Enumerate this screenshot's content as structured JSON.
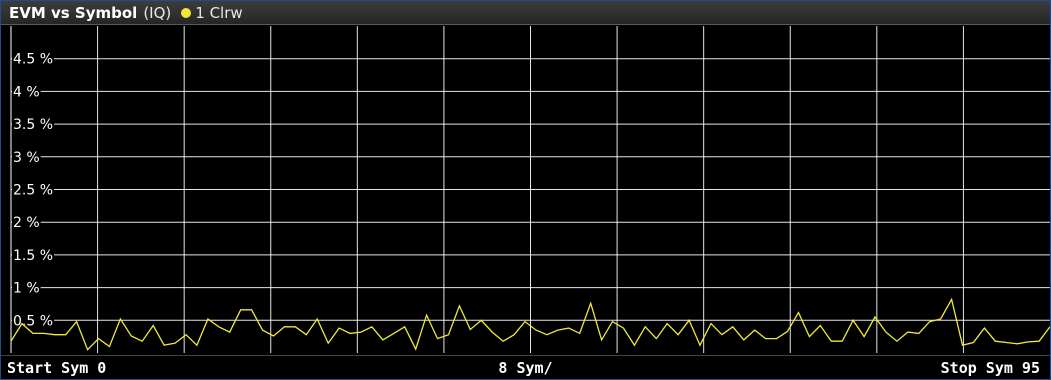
{
  "window": {
    "title": "EVM vs Symbol",
    "subtitle": "(IQ)",
    "trace_label": "1 Clrw",
    "trace_color": "#f2e83a"
  },
  "footer": {
    "start": "Start Sym 0",
    "center": "8 Sym/",
    "stop": "Stop Sym 95"
  },
  "chart_data": {
    "type": "line",
    "title": "EVM vs Symbol",
    "xlabel": "",
    "ylabel": "",
    "xlim": [
      0,
      95
    ],
    "ylim": [
      0,
      5
    ],
    "ytick_values": [
      0.5,
      1,
      1.5,
      2,
      2.5,
      3,
      3.5,
      4,
      4.5
    ],
    "ytick_labels": [
      "0.5 %",
      "1 %",
      "1.5 %",
      "2 %",
      "2.5 %",
      "3 %",
      "3.5 %",
      "4 %",
      "4.5 %"
    ],
    "x_divisions": 12,
    "y_divisions": 10,
    "grid": true,
    "colors": {
      "background": "#000000",
      "grid": "#ffffff",
      "trace": "#f2e83a"
    },
    "series": [
      {
        "values": [
          0.18,
          0.45,
          0.3,
          0.3,
          0.28,
          0.28,
          0.48,
          0.05,
          0.22,
          0.1,
          0.52,
          0.26,
          0.18,
          0.42,
          0.12,
          0.15,
          0.28,
          0.12,
          0.52,
          0.4,
          0.32,
          0.66,
          0.66,
          0.35,
          0.26,
          0.4,
          0.4,
          0.28,
          0.52,
          0.15,
          0.38,
          0.3,
          0.32,
          0.4,
          0.2,
          0.3,
          0.4,
          0.06,
          0.58,
          0.22,
          0.28,
          0.72,
          0.36,
          0.5,
          0.32,
          0.18,
          0.28,
          0.48,
          0.35,
          0.28,
          0.35,
          0.38,
          0.3,
          0.76,
          0.2,
          0.48,
          0.38,
          0.12,
          0.4,
          0.22,
          0.45,
          0.28,
          0.5,
          0.12,
          0.45,
          0.28,
          0.4,
          0.2,
          0.35,
          0.22,
          0.22,
          0.33,
          0.62,
          0.25,
          0.42,
          0.18,
          0.18,
          0.5,
          0.25,
          0.55,
          0.32,
          0.18,
          0.32,
          0.3,
          0.48,
          0.52,
          0.82,
          0.12,
          0.16,
          0.38,
          0.18,
          0.16,
          0.14,
          0.17,
          0.18,
          0.4
        ]
      }
    ]
  }
}
